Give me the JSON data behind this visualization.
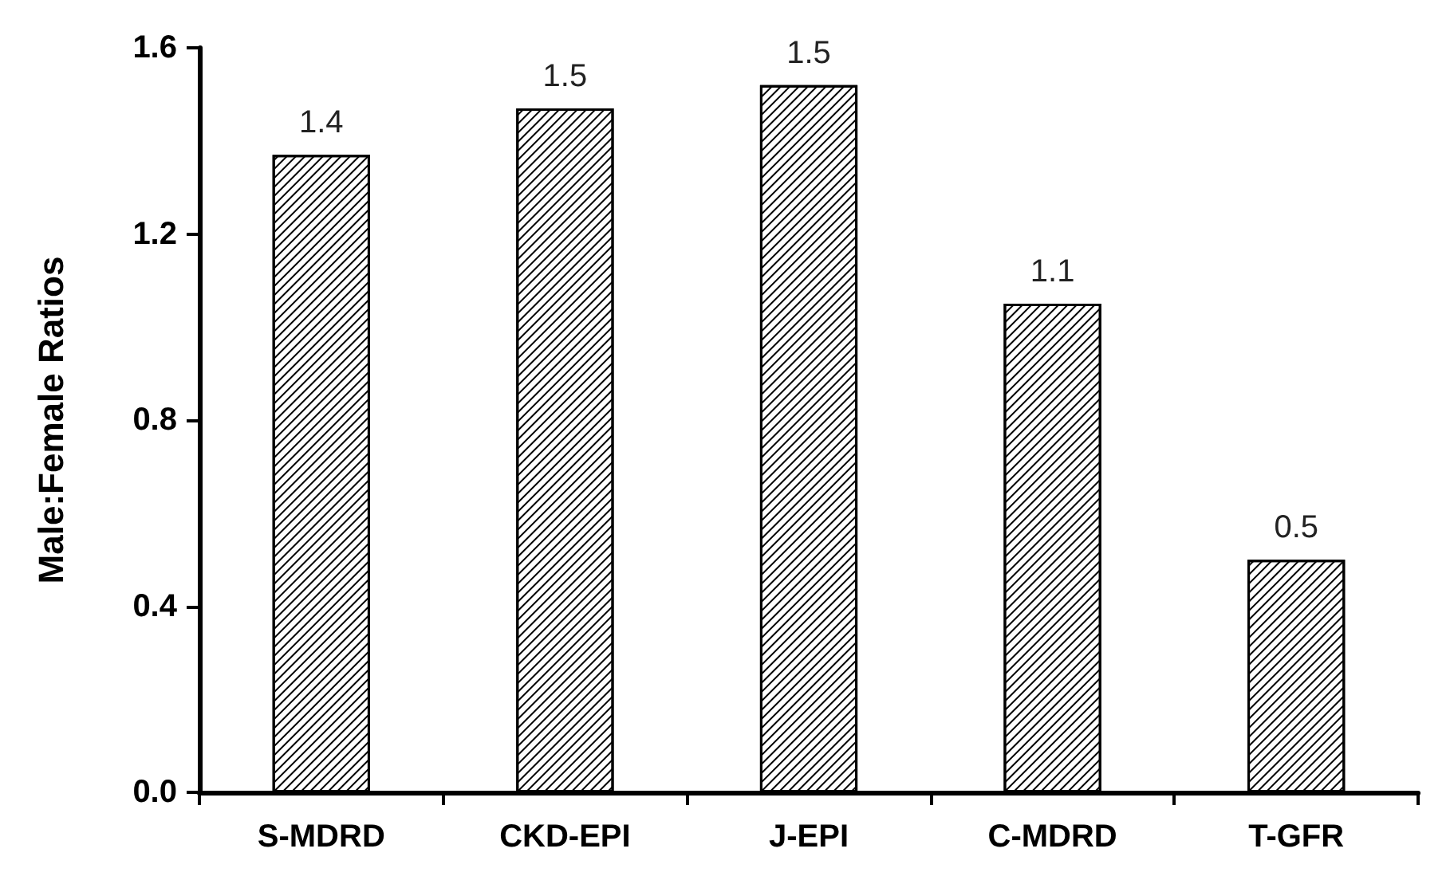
{
  "chart_data": {
    "type": "bar",
    "ylabel": "Male:Female Ratios",
    "categories": [
      "S-MDRD",
      "CKD-EPI",
      "J-EPI",
      "C-MDRD",
      "T-GFR"
    ],
    "values": [
      1.37,
      1.47,
      1.52,
      1.05,
      0.5
    ],
    "value_labels": [
      "1.4",
      "1.5",
      "1.5",
      "1.1",
      "0.5"
    ],
    "color": "#000000",
    "ylim": [
      0,
      1.6
    ],
    "yticks": [
      {
        "value": 0,
        "label": "0.0"
      },
      0.4,
      0.8,
      1.2,
      1.6
    ],
    "grid": false
  }
}
